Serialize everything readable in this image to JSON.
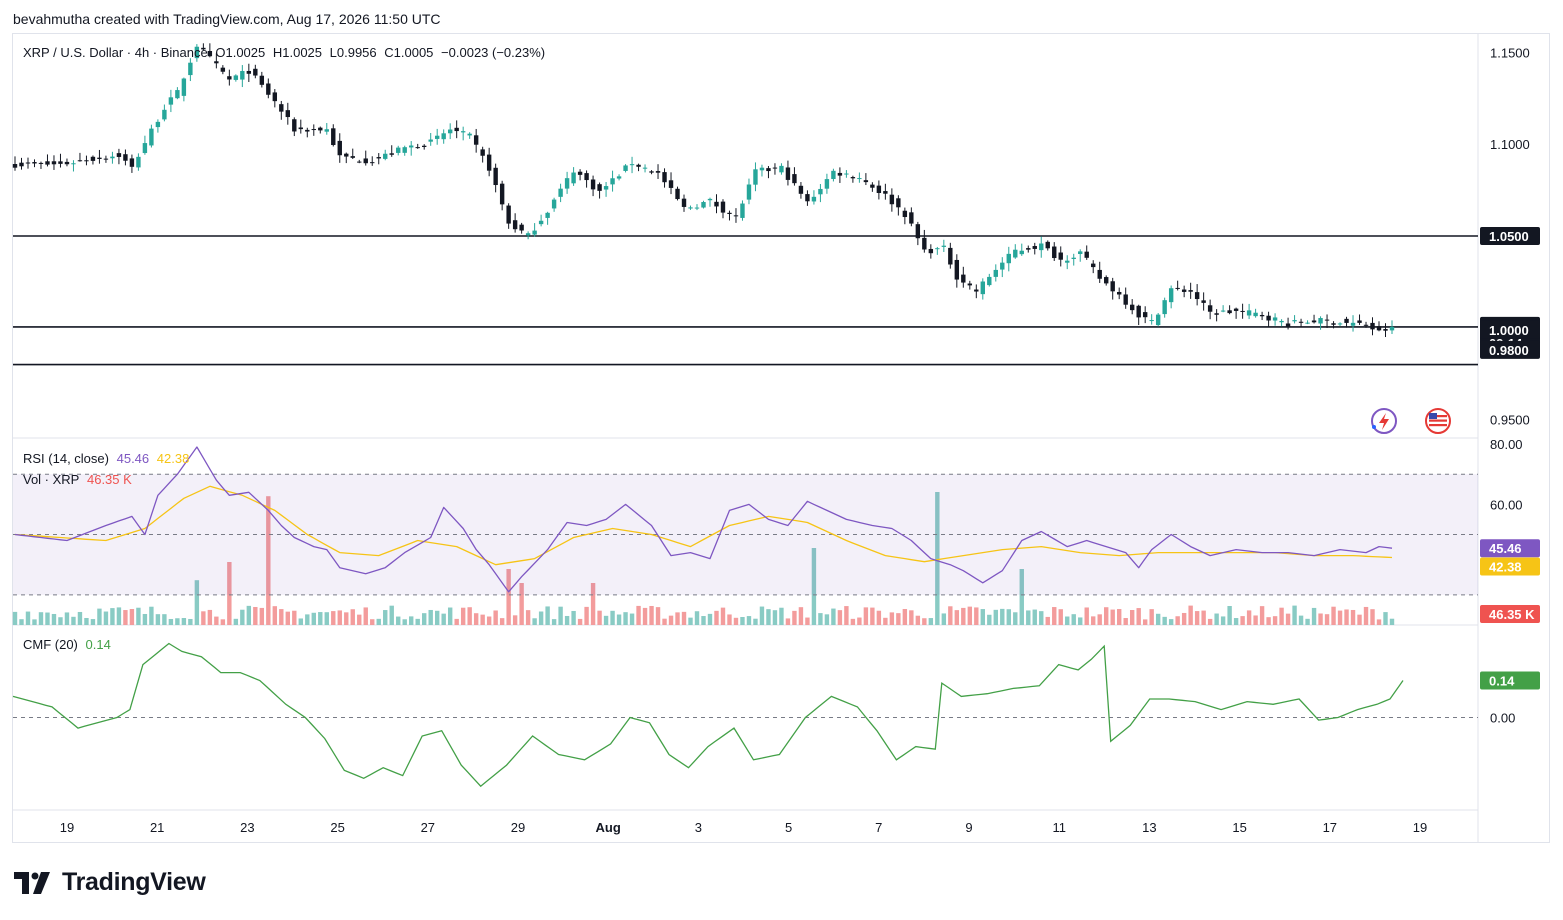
{
  "caption": "bevahmutha created with TradingView.com, Aug 17, 2026 11:50 UTC",
  "header": {
    "symbol": "XRP / U.S. Dollar · 4h · Binance",
    "open": "O1.0025",
    "high": "H1.0025",
    "low": "L0.9956",
    "close": "C1.0005",
    "change": "−0.0023 (−0.23%)"
  },
  "rsi_legend": {
    "name": "RSI (14, close)",
    "value": "45.46",
    "ma_value": "42.38"
  },
  "vol_legend": {
    "name": "Vol · XRP",
    "value": "46.35 K"
  },
  "cmf_legend": {
    "name": "CMF (20)",
    "value": "0.14"
  },
  "brand": {
    "name": "TradingView"
  },
  "colors": {
    "up": "#26a69a",
    "down": "#131722",
    "vol_up": "#89cbc4",
    "vol_down": "#f39c9c",
    "rsi": "#7e57c2",
    "rsi_ma": "#f6c416",
    "cmf": "#43a047",
    "vol_tag": "#ef5350"
  },
  "tags": {
    "level_1": "1.0500",
    "price": "1.0005",
    "countdown": "09:14",
    "level_2": "1.0000",
    "level_3": "0.9800",
    "rsi": "45.46",
    "rsi_ma": "42.38",
    "volume": "46.35 K",
    "cmf": "0.14"
  },
  "icons": [
    "lightning-icon",
    "us-flag-icon"
  ],
  "chart_data": [
    {
      "type": "candlestick",
      "title": "XRP / U.S. Dollar · 4h · Binance",
      "x_ticks": [
        "19",
        "21",
        "23",
        "25",
        "27",
        "29",
        "Aug",
        "3",
        "5",
        "7",
        "9",
        "11",
        "13",
        "15",
        "17",
        "19"
      ],
      "y_ticks": [
        "1.1500",
        "1.1000",
        "0.9500"
      ],
      "ylim": [
        0.94,
        1.16
      ],
      "horizontal_lines": [
        1.05,
        1.0005,
        0.98
      ],
      "close_anchors": [
        [
          0,
          1.089
        ],
        [
          7,
          1.089
        ],
        [
          10,
          1.091
        ],
        [
          16,
          1.094
        ],
        [
          18,
          1.087
        ],
        [
          20,
          1.101
        ],
        [
          23,
          1.12
        ],
        [
          25,
          1.128
        ],
        [
          28,
          1.154
        ],
        [
          33,
          1.135
        ],
        [
          36,
          1.14
        ],
        [
          40,
          1.123
        ],
        [
          43,
          1.108
        ],
        [
          48,
          1.108
        ],
        [
          50,
          1.093
        ],
        [
          55,
          1.091
        ],
        [
          60,
          1.098
        ],
        [
          64,
          1.101
        ],
        [
          67,
          1.108
        ],
        [
          70,
          1.104
        ],
        [
          73,
          1.087
        ],
        [
          76,
          1.057
        ],
        [
          79,
          1.05
        ],
        [
          82,
          1.064
        ],
        [
          86,
          1.086
        ],
        [
          90,
          1.074
        ],
        [
          95,
          1.09
        ],
        [
          99,
          1.084
        ],
        [
          103,
          1.065
        ],
        [
          107,
          1.069
        ],
        [
          111,
          1.06
        ],
        [
          114,
          1.085
        ],
        [
          118,
          1.087
        ],
        [
          122,
          1.068
        ],
        [
          126,
          1.085
        ],
        [
          130,
          1.082
        ],
        [
          134,
          1.072
        ],
        [
          137,
          1.062
        ],
        [
          140,
          1.042
        ],
        [
          143,
          1.043
        ],
        [
          145,
          1.028
        ],
        [
          148,
          1.02
        ],
        [
          151,
          1.032
        ],
        [
          154,
          1.042
        ],
        [
          158,
          1.045
        ],
        [
          161,
          1.037
        ],
        [
          164,
          1.041
        ],
        [
          167,
          1.027
        ],
        [
          170,
          1.018
        ],
        [
          173,
          1.007
        ],
        [
          175,
          1.003
        ],
        [
          178,
          1.021
        ],
        [
          181,
          1.02
        ],
        [
          184,
          1.008
        ],
        [
          188,
          1.009
        ],
        [
          192,
          1.007
        ],
        [
          196,
          1.002
        ],
        [
          200,
          1.004
        ],
        [
          204,
          1.003
        ],
        [
          208,
          1.0015
        ],
        [
          210,
          0.9975
        ],
        [
          212,
          1.0005
        ]
      ]
    },
    {
      "type": "line",
      "title": "RSI (14, close)",
      "y_ticks": [
        "80.00",
        "60.00"
      ],
      "ylim": [
        20,
        82
      ],
      "bands": [
        70,
        50,
        30
      ],
      "series": [
        {
          "name": "RSI",
          "anchors": [
            [
              0,
              50
            ],
            [
              8,
              48
            ],
            [
              14,
              53
            ],
            [
              18,
              56
            ],
            [
              20,
              50
            ],
            [
              22,
              63
            ],
            [
              25,
              70
            ],
            [
              28,
              79
            ],
            [
              31,
              68
            ],
            [
              33,
              63
            ],
            [
              36,
              64
            ],
            [
              39,
              58
            ],
            [
              41,
              53
            ],
            [
              43,
              49
            ],
            [
              46,
              46
            ],
            [
              48,
              45
            ],
            [
              50,
              39
            ],
            [
              54,
              37
            ],
            [
              57,
              39
            ],
            [
              60,
              44
            ],
            [
              64,
              49
            ],
            [
              66,
              59
            ],
            [
              69,
              52
            ],
            [
              71,
              45
            ],
            [
              73,
              40
            ],
            [
              76,
              31
            ],
            [
              78,
              36
            ],
            [
              82,
              45
            ],
            [
              85,
              54
            ],
            [
              88,
              53
            ],
            [
              91,
              55
            ],
            [
              94,
              60
            ],
            [
              98,
              53
            ],
            [
              101,
              43
            ],
            [
              104,
              44
            ],
            [
              107,
              42
            ],
            [
              110,
              58
            ],
            [
              113,
              60
            ],
            [
              116,
              55
            ],
            [
              119,
              53
            ],
            [
              122,
              61
            ],
            [
              125,
              58
            ],
            [
              128,
              55
            ],
            [
              132,
              53
            ],
            [
              135,
              52
            ],
            [
              138,
              48
            ],
            [
              141,
              42
            ],
            [
              144,
              40
            ],
            [
              146,
              38
            ],
            [
              149,
              34
            ],
            [
              152,
              38
            ],
            [
              155,
              48
            ],
            [
              158,
              51
            ],
            [
              162,
              46
            ],
            [
              165,
              48
            ],
            [
              168,
              46
            ],
            [
              171,
              44
            ],
            [
              173,
              39
            ],
            [
              175,
              45
            ],
            [
              178,
              50
            ],
            [
              181,
              46
            ],
            [
              184,
              43
            ],
            [
              188,
              45
            ],
            [
              192,
              44
            ],
            [
              196,
              44
            ],
            [
              200,
              43
            ],
            [
              204,
              45
            ],
            [
              208,
              44
            ],
            [
              210,
              46
            ],
            [
              212,
              45.46
            ]
          ]
        },
        {
          "name": "RSI MA",
          "anchors": [
            [
              0,
              50
            ],
            [
              14,
              48
            ],
            [
              20,
              52
            ],
            [
              26,
              62
            ],
            [
              30,
              66
            ],
            [
              35,
              63
            ],
            [
              40,
              58
            ],
            [
              45,
              50
            ],
            [
              50,
              44
            ],
            [
              56,
              43
            ],
            [
              62,
              48
            ],
            [
              68,
              46
            ],
            [
              74,
              40
            ],
            [
              80,
              42
            ],
            [
              86,
              49
            ],
            [
              92,
              52
            ],
            [
              98,
              50
            ],
            [
              104,
              46
            ],
            [
              110,
              53
            ],
            [
              116,
              56
            ],
            [
              122,
              54
            ],
            [
              128,
              48
            ],
            [
              134,
              43
            ],
            [
              140,
              41
            ],
            [
              146,
              43
            ],
            [
              152,
              45
            ],
            [
              158,
              46
            ],
            [
              164,
              44
            ],
            [
              170,
              43
            ],
            [
              176,
              44
            ],
            [
              182,
              44
            ],
            [
              188,
              44
            ],
            [
              194,
              44
            ],
            [
              200,
              43
            ],
            [
              206,
              43
            ],
            [
              212,
              42.38
            ]
          ]
        }
      ]
    },
    {
      "type": "bar",
      "title": "Vol · XRP",
      "ylim": [
        0,
        100
      ],
      "last_value": "46.35 K",
      "spikes": [
        [
          28,
          32
        ],
        [
          33,
          45
        ],
        [
          39,
          92
        ],
        [
          76,
          40
        ],
        [
          78,
          30
        ],
        [
          89,
          30
        ],
        [
          123,
          55
        ],
        [
          142,
          95
        ],
        [
          155,
          40
        ]
      ]
    },
    {
      "type": "line",
      "title": "CMF (20)",
      "y_ticks": [
        "0.00"
      ],
      "ylim": [
        -0.35,
        0.35
      ],
      "series": [
        {
          "name": "CMF",
          "anchors": [
            [
              0,
              0.08
            ],
            [
              6,
              0.04
            ],
            [
              10,
              -0.04
            ],
            [
              16,
              0.0
            ],
            [
              18,
              0.03
            ],
            [
              20,
              0.2
            ],
            [
              24,
              0.28
            ],
            [
              26,
              0.25
            ],
            [
              29,
              0.23
            ],
            [
              32,
              0.17
            ],
            [
              35,
              0.17
            ],
            [
              38,
              0.14
            ],
            [
              42,
              0.05
            ],
            [
              45,
              0.0
            ],
            [
              48,
              -0.08
            ],
            [
              51,
              -0.2
            ],
            [
              54,
              -0.23
            ],
            [
              57,
              -0.19
            ],
            [
              60,
              -0.22
            ],
            [
              63,
              -0.07
            ],
            [
              66,
              -0.05
            ],
            [
              69,
              -0.18
            ],
            [
              72,
              -0.26
            ],
            [
              76,
              -0.18
            ],
            [
              80,
              -0.07
            ],
            [
              84,
              -0.14
            ],
            [
              88,
              -0.16
            ],
            [
              92,
              -0.1
            ],
            [
              95,
              0.0
            ],
            [
              98,
              -0.02
            ],
            [
              101,
              -0.14
            ],
            [
              104,
              -0.19
            ],
            [
              107,
              -0.11
            ],
            [
              111,
              -0.04
            ],
            [
              114,
              -0.16
            ],
            [
              118,
              -0.14
            ],
            [
              122,
              0.0
            ],
            [
              126,
              0.08
            ],
            [
              130,
              0.04
            ],
            [
              133,
              -0.05
            ],
            [
              136,
              -0.16
            ],
            [
              139,
              -0.11
            ],
            [
              142,
              -0.12
            ],
            [
              143,
              0.13
            ],
            [
              146,
              0.08
            ],
            [
              150,
              0.09
            ],
            [
              154,
              0.11
            ],
            [
              158,
              0.12
            ],
            [
              161,
              0.2
            ],
            [
              164,
              0.18
            ],
            [
              166,
              0.22
            ],
            [
              168,
              0.27
            ],
            [
              169,
              -0.09
            ],
            [
              172,
              -0.03
            ],
            [
              175,
              0.07
            ],
            [
              178,
              0.07
            ],
            [
              182,
              0.06
            ],
            [
              186,
              0.03
            ],
            [
              190,
              0.06
            ],
            [
              194,
              0.05
            ],
            [
              198,
              0.07
            ],
            [
              201,
              -0.01
            ],
            [
              204,
              0.0
            ],
            [
              207,
              0.03
            ],
            [
              210,
              0.05
            ],
            [
              212,
              0.07
            ],
            [
              214,
              0.14
            ]
          ]
        }
      ]
    }
  ]
}
